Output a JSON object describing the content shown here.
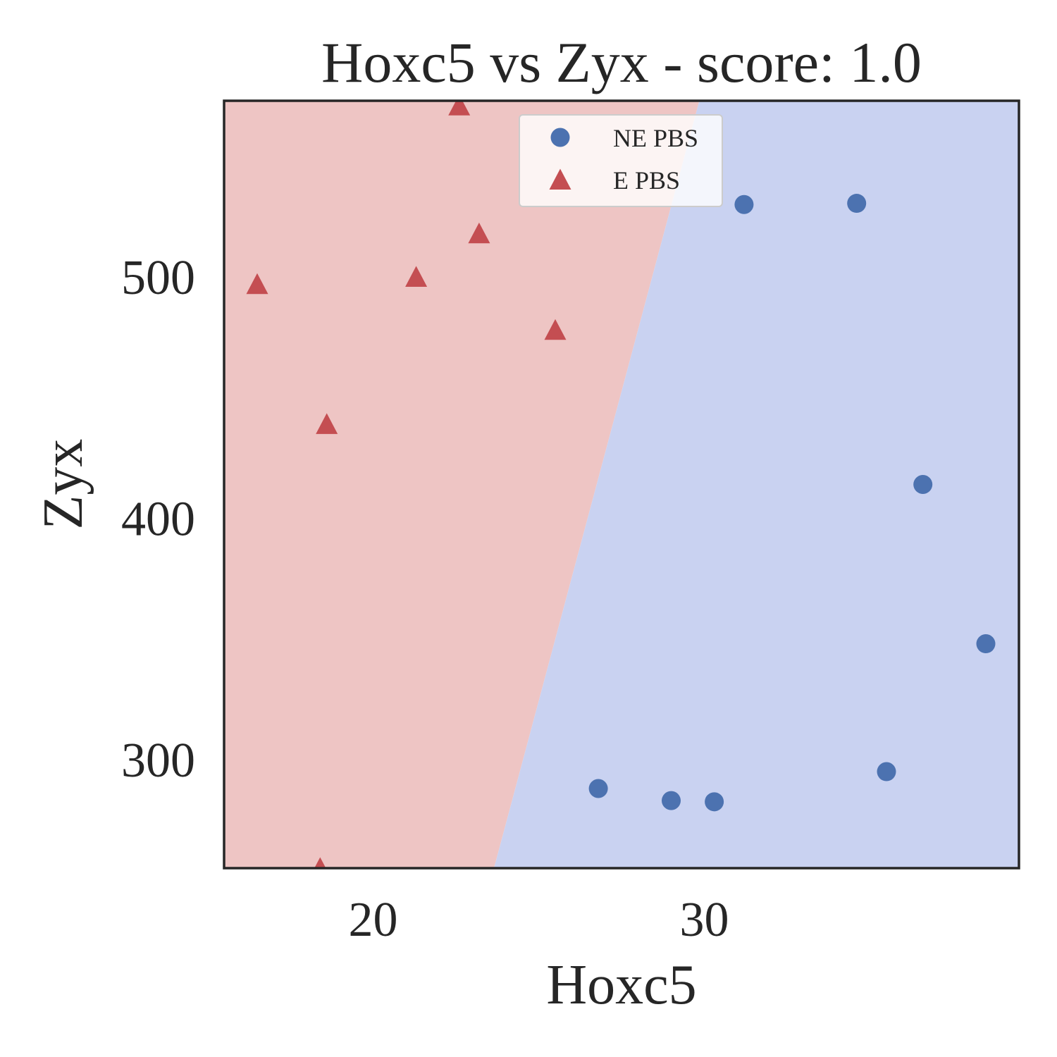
{
  "chart_data": {
    "type": "scatter",
    "title": "Hoxc5 vs Zyx - score: 1.0",
    "xlabel": "Hoxc5",
    "ylabel": "Zyx",
    "xlim": [
      15.5,
      39.5
    ],
    "ylim": [
      255,
      573
    ],
    "xticks": [
      20,
      30
    ],
    "yticks": [
      300,
      400,
      500
    ],
    "grid": false,
    "legend_position": "upper center",
    "regions": [
      {
        "class": "E PBS",
        "side": "left",
        "color": "#eec5c4"
      },
      {
        "class": "NE PBS",
        "side": "right",
        "color": "#c9d2f1"
      }
    ],
    "boundary": [
      [
        23.65,
        255
      ],
      [
        29.85,
        573
      ]
    ],
    "series": [
      {
        "name": "NE PBS",
        "marker": "circle",
        "color": "#4c72b0",
        "points": [
          [
            31.2,
            530
          ],
          [
            34.6,
            530.5
          ],
          [
            36.6,
            414
          ],
          [
            38.5,
            348
          ],
          [
            35.5,
            295
          ],
          [
            26.8,
            288
          ],
          [
            29.0,
            283
          ],
          [
            30.3,
            282.5
          ]
        ]
      },
      {
        "name": "E PBS",
        "marker": "triangle",
        "color": "#c44e52",
        "points": [
          [
            16.5,
            497
          ],
          [
            21.3,
            500
          ],
          [
            23.2,
            518
          ],
          [
            25.5,
            478
          ],
          [
            18.6,
            439
          ],
          [
            22.6,
            571
          ],
          [
            18.4,
            255
          ]
        ]
      }
    ]
  }
}
